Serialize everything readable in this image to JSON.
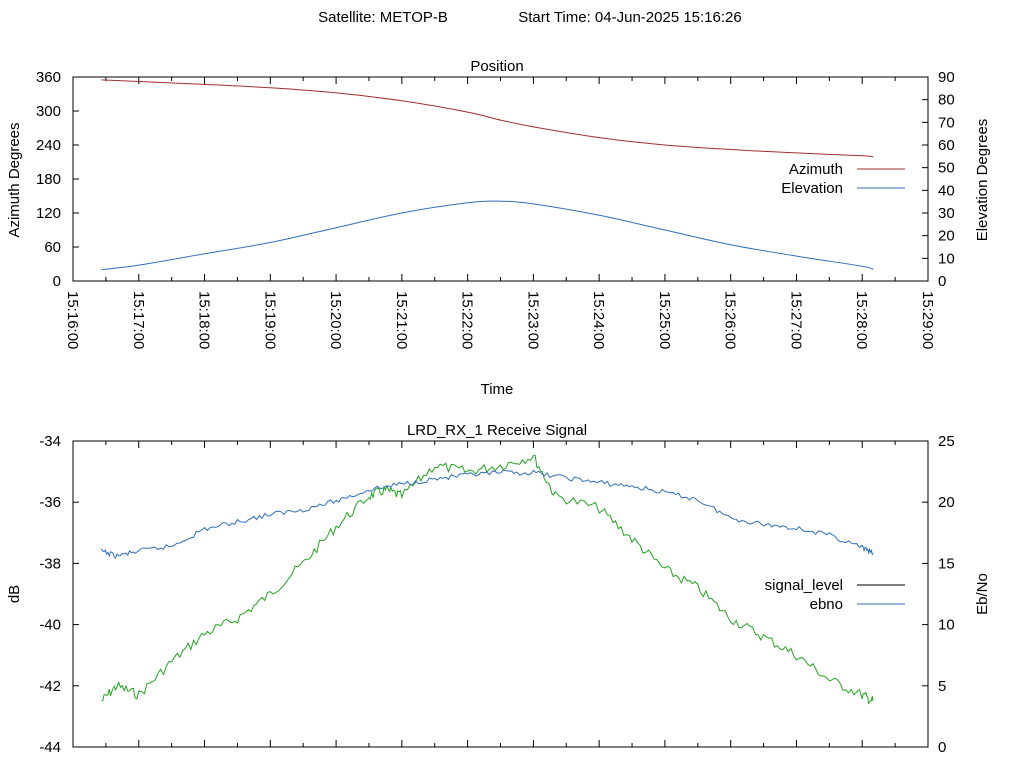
{
  "header": {
    "satellite_label": "Satellite: METOP-B",
    "start_label": "Start Time: 04-Jun-2025 15:16:26"
  },
  "chart_data": [
    {
      "type": "line",
      "title": "Position",
      "xlabel": "Time",
      "ylabel": "Azimuth Degrees",
      "y2label": "Elevation Degrees",
      "ylim": [
        0,
        360
      ],
      "y2lim": [
        0,
        90
      ],
      "xlim": [
        "15:16:00",
        "15:29:00"
      ],
      "x_ticks": [
        "15:16:00",
        "15:17:00",
        "15:18:00",
        "15:19:00",
        "15:20:00",
        "15:21:00",
        "15:22:00",
        "15:23:00",
        "15:24:00",
        "15:25:00",
        "15:26:00",
        "15:27:00",
        "15:28:00",
        "15:29:00"
      ],
      "y_ticks": [
        "0",
        "60",
        "120",
        "180",
        "240",
        "300",
        "360"
      ],
      "y2_ticks": [
        "0",
        "10",
        "20",
        "30",
        "40",
        "50",
        "60",
        "70",
        "80",
        "90"
      ],
      "grid": false,
      "legend_position": "right",
      "series": [
        {
          "name": "Azimuth",
          "axis": "y",
          "color": "#a0302d",
          "x": [
            "15:16:26",
            "15:17:00",
            "15:18:00",
            "15:19:00",
            "15:20:00",
            "15:21:00",
            "15:22:00",
            "15:22:30",
            "15:23:00",
            "15:24:00",
            "15:25:00",
            "15:26:00",
            "15:27:00",
            "15:28:00",
            "15:28:10"
          ],
          "y": [
            355,
            352,
            347,
            341,
            332,
            318,
            298,
            284,
            272,
            253,
            240,
            232,
            226,
            221,
            219
          ]
        },
        {
          "name": "Elevation",
          "axis": "y2",
          "color": "#2f6fbf",
          "x": [
            "15:16:26",
            "15:17:00",
            "15:18:00",
            "15:19:00",
            "15:20:00",
            "15:21:00",
            "15:22:00",
            "15:22:30",
            "15:23:00",
            "15:24:00",
            "15:25:00",
            "15:26:00",
            "15:27:00",
            "15:28:00",
            "15:28:10"
          ],
          "y": [
            5,
            7,
            12,
            17,
            23.5,
            30,
            34.5,
            35.2,
            34,
            29,
            22.5,
            16,
            11,
            6.5,
            5
          ]
        }
      ]
    },
    {
      "type": "line",
      "title": "LRD_RX_1 Receive Signal",
      "xlabel": "",
      "ylabel": "dB",
      "y2label": "Eb/No",
      "ylim": [
        -44,
        -34
      ],
      "y2lim": [
        0,
        25
      ],
      "xlim": [
        "15:16:00",
        "15:29:00"
      ],
      "y_ticks": [
        "-44",
        "-42",
        "-40",
        "-38",
        "-36",
        "-34"
      ],
      "y2_ticks": [
        "0",
        "5",
        "10",
        "15",
        "20",
        "25"
      ],
      "grid": false,
      "legend_position": "right",
      "legend": [
        {
          "name": "signal_level",
          "color": "#000000"
        },
        {
          "name": "ebno",
          "color": "#2f6fbf"
        }
      ],
      "series": [
        {
          "name": "signal_level (plotted)",
          "axis": "y",
          "color": "#22a61f",
          "x": [
            "15:16:26",
            "15:16:40",
            "15:17:00",
            "15:17:30",
            "15:18:00",
            "15:18:30",
            "15:19:00",
            "15:19:30",
            "15:20:00",
            "15:20:30",
            "15:20:45",
            "15:21:00",
            "15:21:30",
            "15:22:00",
            "15:22:30",
            "15:23:00",
            "15:23:20",
            "15:24:00",
            "15:24:30",
            "15:25:00",
            "15:25:30",
            "15:26:00",
            "15:26:30",
            "15:27:00",
            "15:27:30",
            "15:28:00",
            "15:28:10"
          ],
          "y": [
            -42.5,
            -42.0,
            -42.3,
            -41.2,
            -40.3,
            -39.8,
            -39.0,
            -38.0,
            -36.8,
            -35.8,
            -35.6,
            -35.8,
            -34.8,
            -35.0,
            -34.8,
            -34.5,
            -35.8,
            -36.2,
            -37.2,
            -38.2,
            -38.8,
            -39.8,
            -40.4,
            -41.0,
            -41.8,
            -42.3,
            -42.5
          ]
        },
        {
          "name": "ebno",
          "axis": "y2",
          "color": "#2f6fbf",
          "x": [
            "15:16:26",
            "15:16:40",
            "15:17:00",
            "15:17:30",
            "15:18:00",
            "15:18:30",
            "15:19:00",
            "15:19:30",
            "15:20:00",
            "15:20:30",
            "15:21:00",
            "15:21:30",
            "15:22:00",
            "15:22:30",
            "15:23:00",
            "15:23:30",
            "15:24:00",
            "15:24:30",
            "15:25:00",
            "15:25:30",
            "15:26:00",
            "15:26:30",
            "15:27:00",
            "15:27:30",
            "15:28:00",
            "15:28:10"
          ],
          "y": [
            16,
            15.6,
            16,
            16.4,
            17.8,
            18.4,
            19.0,
            19.4,
            20.1,
            21.0,
            21.5,
            21.9,
            22.2,
            22.4,
            22.4,
            22.0,
            21.6,
            21.3,
            20.8,
            20.2,
            18.7,
            18.2,
            17.9,
            17.3,
            16.3,
            15.8
          ]
        }
      ]
    }
  ]
}
